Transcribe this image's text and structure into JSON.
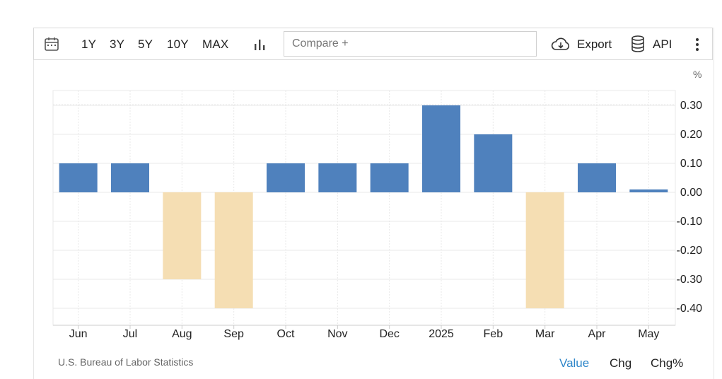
{
  "toolbar": {
    "icons": {
      "calendar": "calendar-icon",
      "chart_type": "bar-chart-icon",
      "export": "cloud-download-icon",
      "api": "database-icon",
      "more": "more-vertical-icon"
    },
    "ranges": [
      "1Y",
      "3Y",
      "5Y",
      "10Y",
      "MAX"
    ],
    "compare_placeholder": "Compare +",
    "export_label": "Export",
    "api_label": "API"
  },
  "chart": {
    "unit": "%",
    "source": "U.S. Bureau of Labor Statistics",
    "modes": [
      "Value",
      "Chg",
      "Chg%"
    ],
    "active_mode": "Value"
  },
  "chart_data": {
    "type": "bar",
    "categories": [
      "Jun",
      "Jul",
      "Aug",
      "Sep",
      "Oct",
      "Nov",
      "Dec",
      "2025",
      "Feb",
      "Mar",
      "Apr",
      "May"
    ],
    "values": [
      0.1,
      0.1,
      -0.3,
      -0.4,
      0.1,
      0.1,
      0.1,
      0.3,
      0.2,
      -0.4,
      0.1,
      0.01
    ],
    "yticks": [
      0.3,
      0.2,
      0.1,
      0.0,
      -0.1,
      -0.2,
      -0.3,
      -0.4
    ],
    "ytick_labels": [
      "0.30",
      "0.20",
      "0.10",
      "0.00",
      "-0.10",
      "-0.20",
      "-0.30",
      "-0.40"
    ],
    "ylim": [
      -0.45,
      0.35
    ],
    "grid": true,
    "colors": {
      "positive": "#4f81bd",
      "negative": "#f5deb3",
      "grid": "#e8e8e8",
      "axis": "#cccccc"
    }
  }
}
